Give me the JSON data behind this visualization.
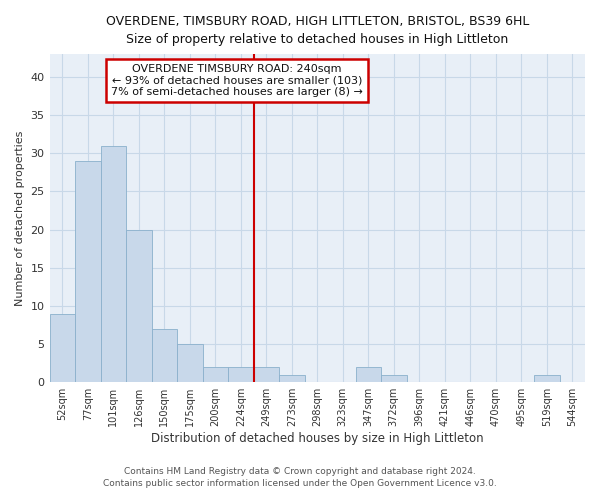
{
  "title": "OVERDENE, TIMSBURY ROAD, HIGH LITTLETON, BRISTOL, BS39 6HL",
  "subtitle": "Size of property relative to detached houses in High Littleton",
  "xlabel": "Distribution of detached houses by size in High Littleton",
  "ylabel": "Number of detached properties",
  "categories": [
    "52sqm",
    "77sqm",
    "101sqm",
    "126sqm",
    "150sqm",
    "175sqm",
    "200sqm",
    "224sqm",
    "249sqm",
    "273sqm",
    "298sqm",
    "323sqm",
    "347sqm",
    "372sqm",
    "396sqm",
    "421sqm",
    "446sqm",
    "470sqm",
    "495sqm",
    "519sqm",
    "544sqm"
  ],
  "values": [
    9,
    29,
    31,
    20,
    7,
    5,
    2,
    2,
    2,
    1,
    0,
    0,
    2,
    1,
    0,
    0,
    0,
    0,
    0,
    1,
    0
  ],
  "bar_color": "#c8d8ea",
  "bar_edge_color": "#8ab0cc",
  "grid_color": "#c8d8e8",
  "background_color": "#ffffff",
  "plot_bg_color": "#e8eff7",
  "vline_color": "#cc0000",
  "annotation_title": "OVERDENE TIMSBURY ROAD: 240sqm",
  "annotation_line1": "← 93% of detached houses are smaller (103)",
  "annotation_line2": "7% of semi-detached houses are larger (8) →",
  "annotation_box_edgecolor": "#cc0000",
  "annotation_bg": "#ffffff",
  "ylim": [
    0,
    43
  ],
  "yticks": [
    0,
    5,
    10,
    15,
    20,
    25,
    30,
    35,
    40
  ],
  "footnote1": "Contains HM Land Registry data © Crown copyright and database right 2024.",
  "footnote2": "Contains public sector information licensed under the Open Government Licence v3.0."
}
